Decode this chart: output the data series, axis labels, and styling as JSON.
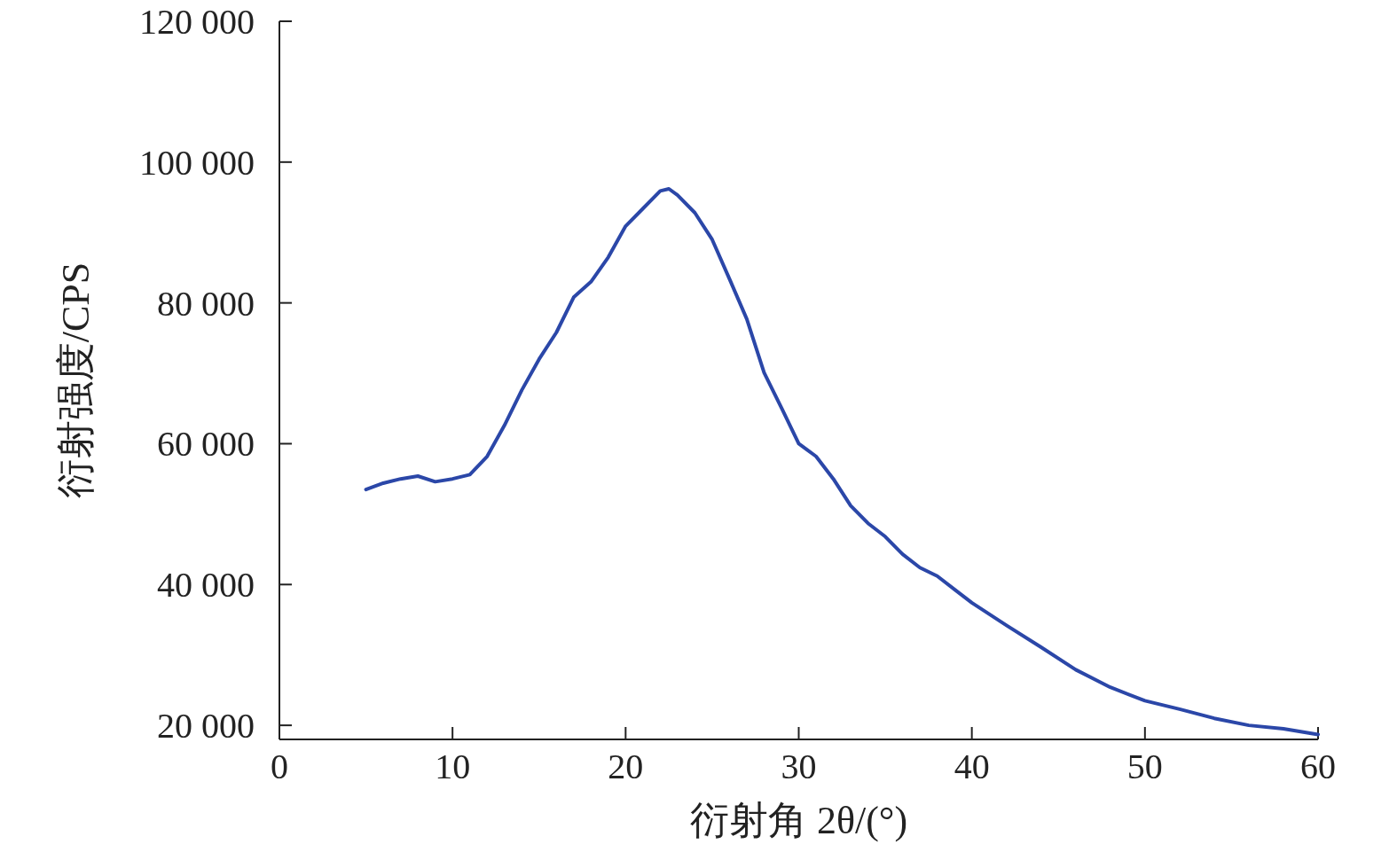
{
  "chart_data": {
    "type": "line",
    "xlabel": "衍射角 2θ/(°)",
    "ylabel": "衍射强度/CPS",
    "x": [
      5,
      6,
      7,
      8,
      9,
      10,
      11,
      12,
      13,
      14,
      15,
      16,
      17,
      18,
      19,
      20,
      21,
      22,
      22.5,
      23,
      24,
      25,
      26,
      27,
      28,
      29,
      30,
      31,
      32,
      33,
      34,
      35,
      36,
      37,
      38,
      39,
      40,
      42,
      44,
      46,
      48,
      50,
      52,
      54,
      56,
      58,
      60
    ],
    "series": [
      {
        "color": "#2b47a8",
        "values": [
          53500,
          54400,
          55000,
          55400,
          54600,
          55000,
          55600,
          58200,
          62600,
          67600,
          72000,
          75800,
          80800,
          83000,
          86500,
          90900,
          93400,
          95900,
          96200,
          95300,
          92800,
          89000,
          83400,
          77700,
          70100,
          65100,
          60000,
          58200,
          55000,
          51200,
          48700,
          46800,
          44300,
          42400,
          41200,
          39300,
          37400,
          34200,
          31100,
          27900,
          25400,
          23500,
          22300,
          21000,
          20000,
          19500,
          18700
        ]
      }
    ],
    "xlim": [
      0,
      60
    ],
    "xticks": [
      0,
      10,
      20,
      30,
      40,
      50,
      60
    ],
    "ylim": [
      18000,
      120000
    ],
    "yticks": [
      {
        "value": 20000,
        "label": "20 000"
      },
      {
        "value": 40000,
        "label": "40 000"
      },
      {
        "value": 60000,
        "label": "60 000"
      },
      {
        "value": 80000,
        "label": "80 000"
      },
      {
        "value": 100000,
        "label": "100 000"
      },
      {
        "value": 120000,
        "label": "120 000"
      }
    ],
    "grid": false,
    "marker": "none",
    "line_style": "solid"
  }
}
